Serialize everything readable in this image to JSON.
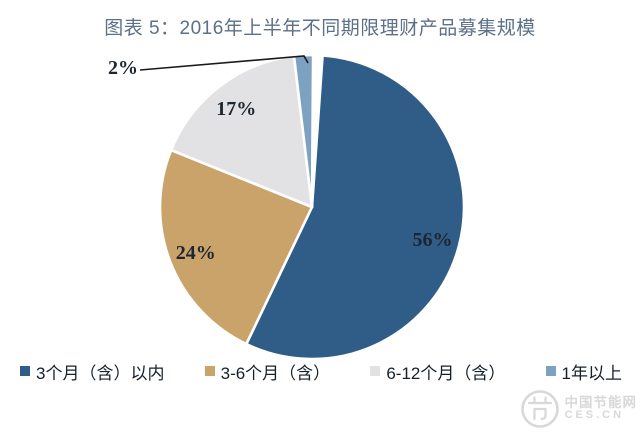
{
  "chart_data": {
    "type": "pie",
    "title": "图表 5：2016年上半年不同期限理财产品募集规模",
    "slices": [
      {
        "label": "3个月（含）以内",
        "value": 56,
        "display": "56%",
        "color": "#2f5d88"
      },
      {
        "label": "3-6个月（含）",
        "value": 24,
        "display": "24%",
        "color": "#c9a369"
      },
      {
        "label": "6-12个月（含）",
        "value": 17,
        "display": "17%",
        "color": "#e2e2e4"
      },
      {
        "label": "1年以上",
        "value": 2,
        "display": "2%",
        "color": "#7da2c1"
      }
    ],
    "direction": "clockwise",
    "start_angle_deg": 4,
    "unlabeled_remainder_pct": 1,
    "legend_position": "bottom",
    "colors": {
      "background": "#ffffff",
      "title": "#5d7089",
      "percent_label": "#1d2530",
      "leader_line": "#1a1a1a",
      "slice_separator": "#ffffff"
    }
  },
  "watermark": {
    "line1": "中国节能网",
    "line2": "CES.CN",
    "logo": "china-energy-saving-network-logo"
  }
}
